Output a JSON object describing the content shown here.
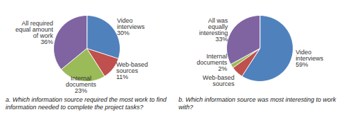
{
  "chart_data": [
    {
      "type": "pie",
      "caption": "a. Which information source required the most work to find information needed to complete the project tasks?",
      "categories": [
        "Video interviews",
        "Web-based sources",
        "Internal documents",
        "All required equal amount of work"
      ],
      "values": [
        30,
        11,
        23,
        36
      ],
      "value_labels": [
        "30%",
        "11%",
        "23%",
        "36%"
      ],
      "colors": [
        "#4f81bd",
        "#c0504d",
        "#9bbb59",
        "#8064a2"
      ],
      "data_labels": true
    },
    {
      "type": "pie",
      "caption": "b. Which information source was most interesting to work with?",
      "categories": [
        "Video interviews",
        "Web-based sources",
        "Internal documents",
        "All was equally interesting"
      ],
      "values": [
        59,
        6,
        2,
        33
      ],
      "value_labels": [
        "59%",
        null,
        "2%",
        "33%"
      ],
      "colors": [
        "#4f81bd",
        "#c0504d",
        "#9bbb59",
        "#8064a2"
      ],
      "data_labels": true
    }
  ]
}
